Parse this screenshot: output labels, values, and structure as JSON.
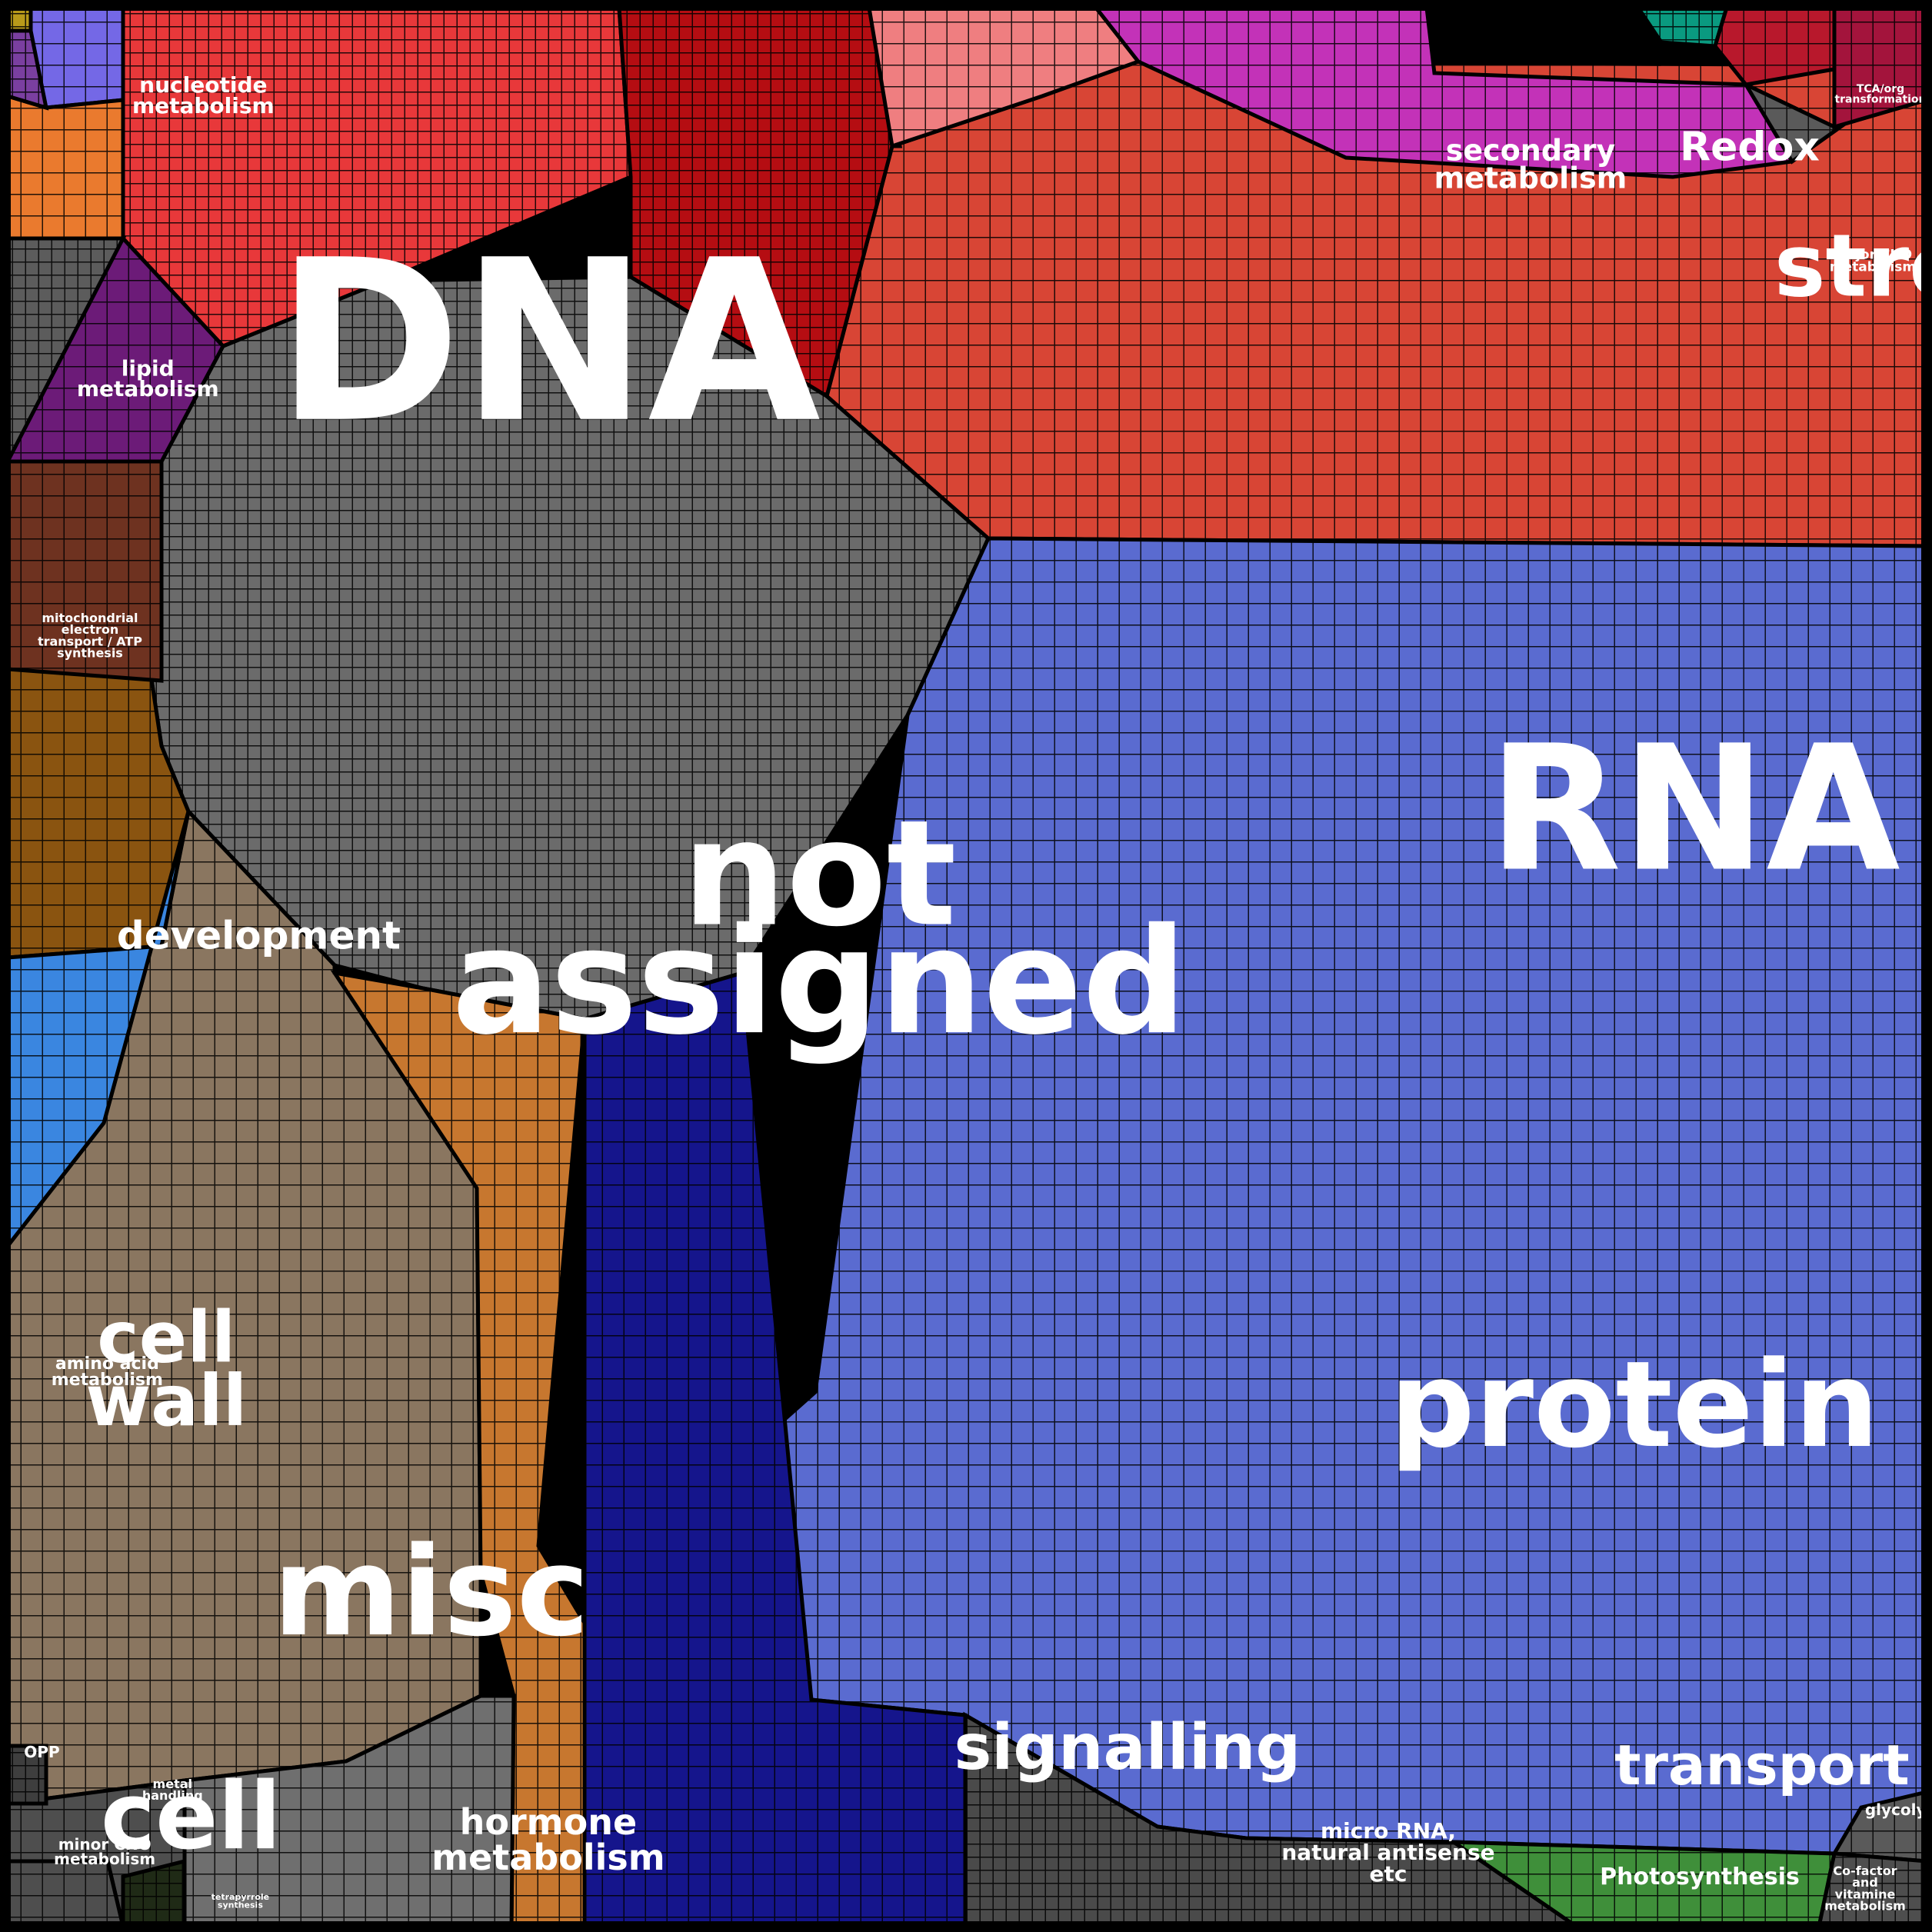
{
  "treemap": {
    "cells": [
      {
        "id": "not-assigned",
        "label": "not\nassigned",
        "color": "#6b6b6b"
      },
      {
        "id": "dna",
        "label": "DNA",
        "color": "#e8383a"
      },
      {
        "id": "rna",
        "label": "RNA",
        "color": "#d84535"
      },
      {
        "id": "protein",
        "label": "protein",
        "color": "#5a6bd0"
      },
      {
        "id": "stress",
        "label": "stress",
        "color": "#b50d12"
      },
      {
        "id": "misc",
        "label": "misc",
        "color": "#8a7660"
      },
      {
        "id": "signalling",
        "label": "signalling",
        "color": "#c7772f"
      },
      {
        "id": "transport",
        "label": "transport",
        "color": "#15158c"
      },
      {
        "id": "cell",
        "label": "cell",
        "color": "#8a5410"
      },
      {
        "id": "cell-wall",
        "label": "cell\nwall",
        "color": "#6e3220"
      },
      {
        "id": "development",
        "label": "development",
        "color": "#6c1b78"
      },
      {
        "id": "hormone-metabolism",
        "label": "hormone\nmetabolism",
        "color": "#6f6f6f"
      },
      {
        "id": "micro-rna",
        "label": "micro RNA,\nnatural antisense\netc",
        "color": "#4a4a4a"
      },
      {
        "id": "photosynthesis",
        "label": "Photosynthesis",
        "color": "#3f8f3a"
      },
      {
        "id": "secondary-metabolism",
        "label": "secondary\nmetabolism",
        "color": "#ef7e80"
      },
      {
        "id": "redox",
        "label": "Redox",
        "color": "#c332b8"
      },
      {
        "id": "nucleotide-metabolism",
        "label": "nucleotide\nmetabolism",
        "color": "#7468e6"
      },
      {
        "id": "lipid-metabolism",
        "label": "lipid\nmetabolism",
        "color": "#ea7a2e"
      },
      {
        "id": "amino-acid-metabolism",
        "label": "amino acid\nmetabolism",
        "color": "#3a86e0"
      },
      {
        "id": "mitochondrial",
        "label": "mitochondrial\nelectron\ntransport / ATP\nsynthesis",
        "color": "#5c5c5c"
      },
      {
        "id": "major-cho",
        "label": "major CHO\nmetabolism",
        "color": "#5a5a5a"
      },
      {
        "id": "tca",
        "label": "TCA/org\ntransformation",
        "color": "#a3143c"
      },
      {
        "id": "glycolysis",
        "label": "glycolysis",
        "color": "#5a5a5a"
      },
      {
        "id": "cofactor",
        "label": "Co-factor\nand\nvitamine\nmetabolism",
        "color": "#4e4e4e"
      },
      {
        "id": "metal-handling",
        "label": "metal\nhandling",
        "color": "#4e4e4e"
      },
      {
        "id": "minor-cho",
        "label": "minor CHO\nmetabolism",
        "color": "#4e4e4e"
      },
      {
        "id": "opp",
        "label": "OPP",
        "color": "#3e3e3e"
      },
      {
        "id": "tetrapyrrole",
        "label": "tetrapyrrole\nsynthesis",
        "color": "#1f2a16"
      },
      {
        "id": "teal-small",
        "label": "",
        "color": "#0a9a80"
      },
      {
        "id": "crimson-small",
        "label": "",
        "color": "#b8182c"
      },
      {
        "id": "yellow-corner",
        "label": "",
        "color": "#b89a1a"
      },
      {
        "id": "purple-corner",
        "label": "",
        "color": "#7a3fa0"
      }
    ]
  }
}
